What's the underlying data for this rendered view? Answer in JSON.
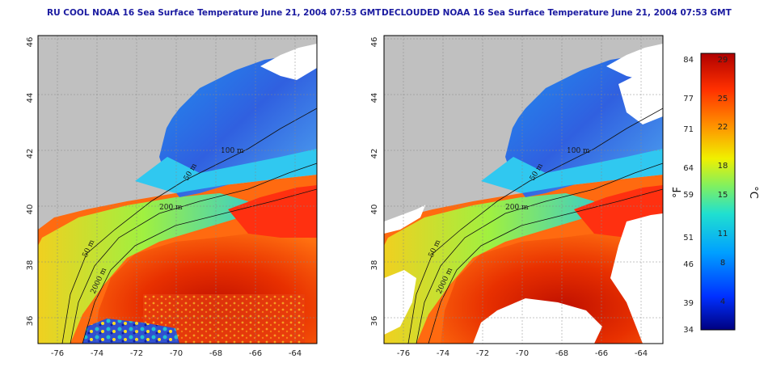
{
  "panels": [
    {
      "title": "RU COOL NOAA 16 Sea Surface Temperature June 21, 2004 07:53 GMT",
      "contour_labels": [
        "100 m",
        "50 m",
        "200 m",
        "50 m",
        "2000 m"
      ]
    },
    {
      "title": "DECLOUDED NOAA 16 Sea Surface Temperature June 21, 2004 07:53 GMT",
      "contour_labels": [
        "100 m",
        "50 m",
        "200 m",
        "50 m",
        "2000 m"
      ]
    }
  ],
  "axes": {
    "lat_ticks": [
      "46",
      "44",
      "42",
      "40",
      "38",
      "36"
    ],
    "lon_ticks": [
      "-76",
      "-74",
      "-72",
      "-70",
      "-68",
      "-66",
      "-64"
    ]
  },
  "colorbar": {
    "f_label": "°F",
    "c_label": "°C",
    "f_ticks": [
      "84",
      "77",
      "71",
      "64",
      "59",
      "51",
      "46",
      "39",
      "34"
    ],
    "c_ticks": [
      "29",
      "25",
      "22",
      "18",
      "15",
      "11",
      "8",
      "4"
    ],
    "colors": [
      "#000080",
      "#0030ff",
      "#00a0ff",
      "#20e0d0",
      "#80f060",
      "#f0f000",
      "#ff9000",
      "#ff3000",
      "#b00000"
    ]
  },
  "map_colors": {
    "land": "#c0c0c0",
    "shelf_cool": "#3a7cf0",
    "gulf_stream": "#d81800",
    "slope": "#ff7a10",
    "coastal": "#c8e830",
    "cloud_mask": "#ffffff"
  }
}
